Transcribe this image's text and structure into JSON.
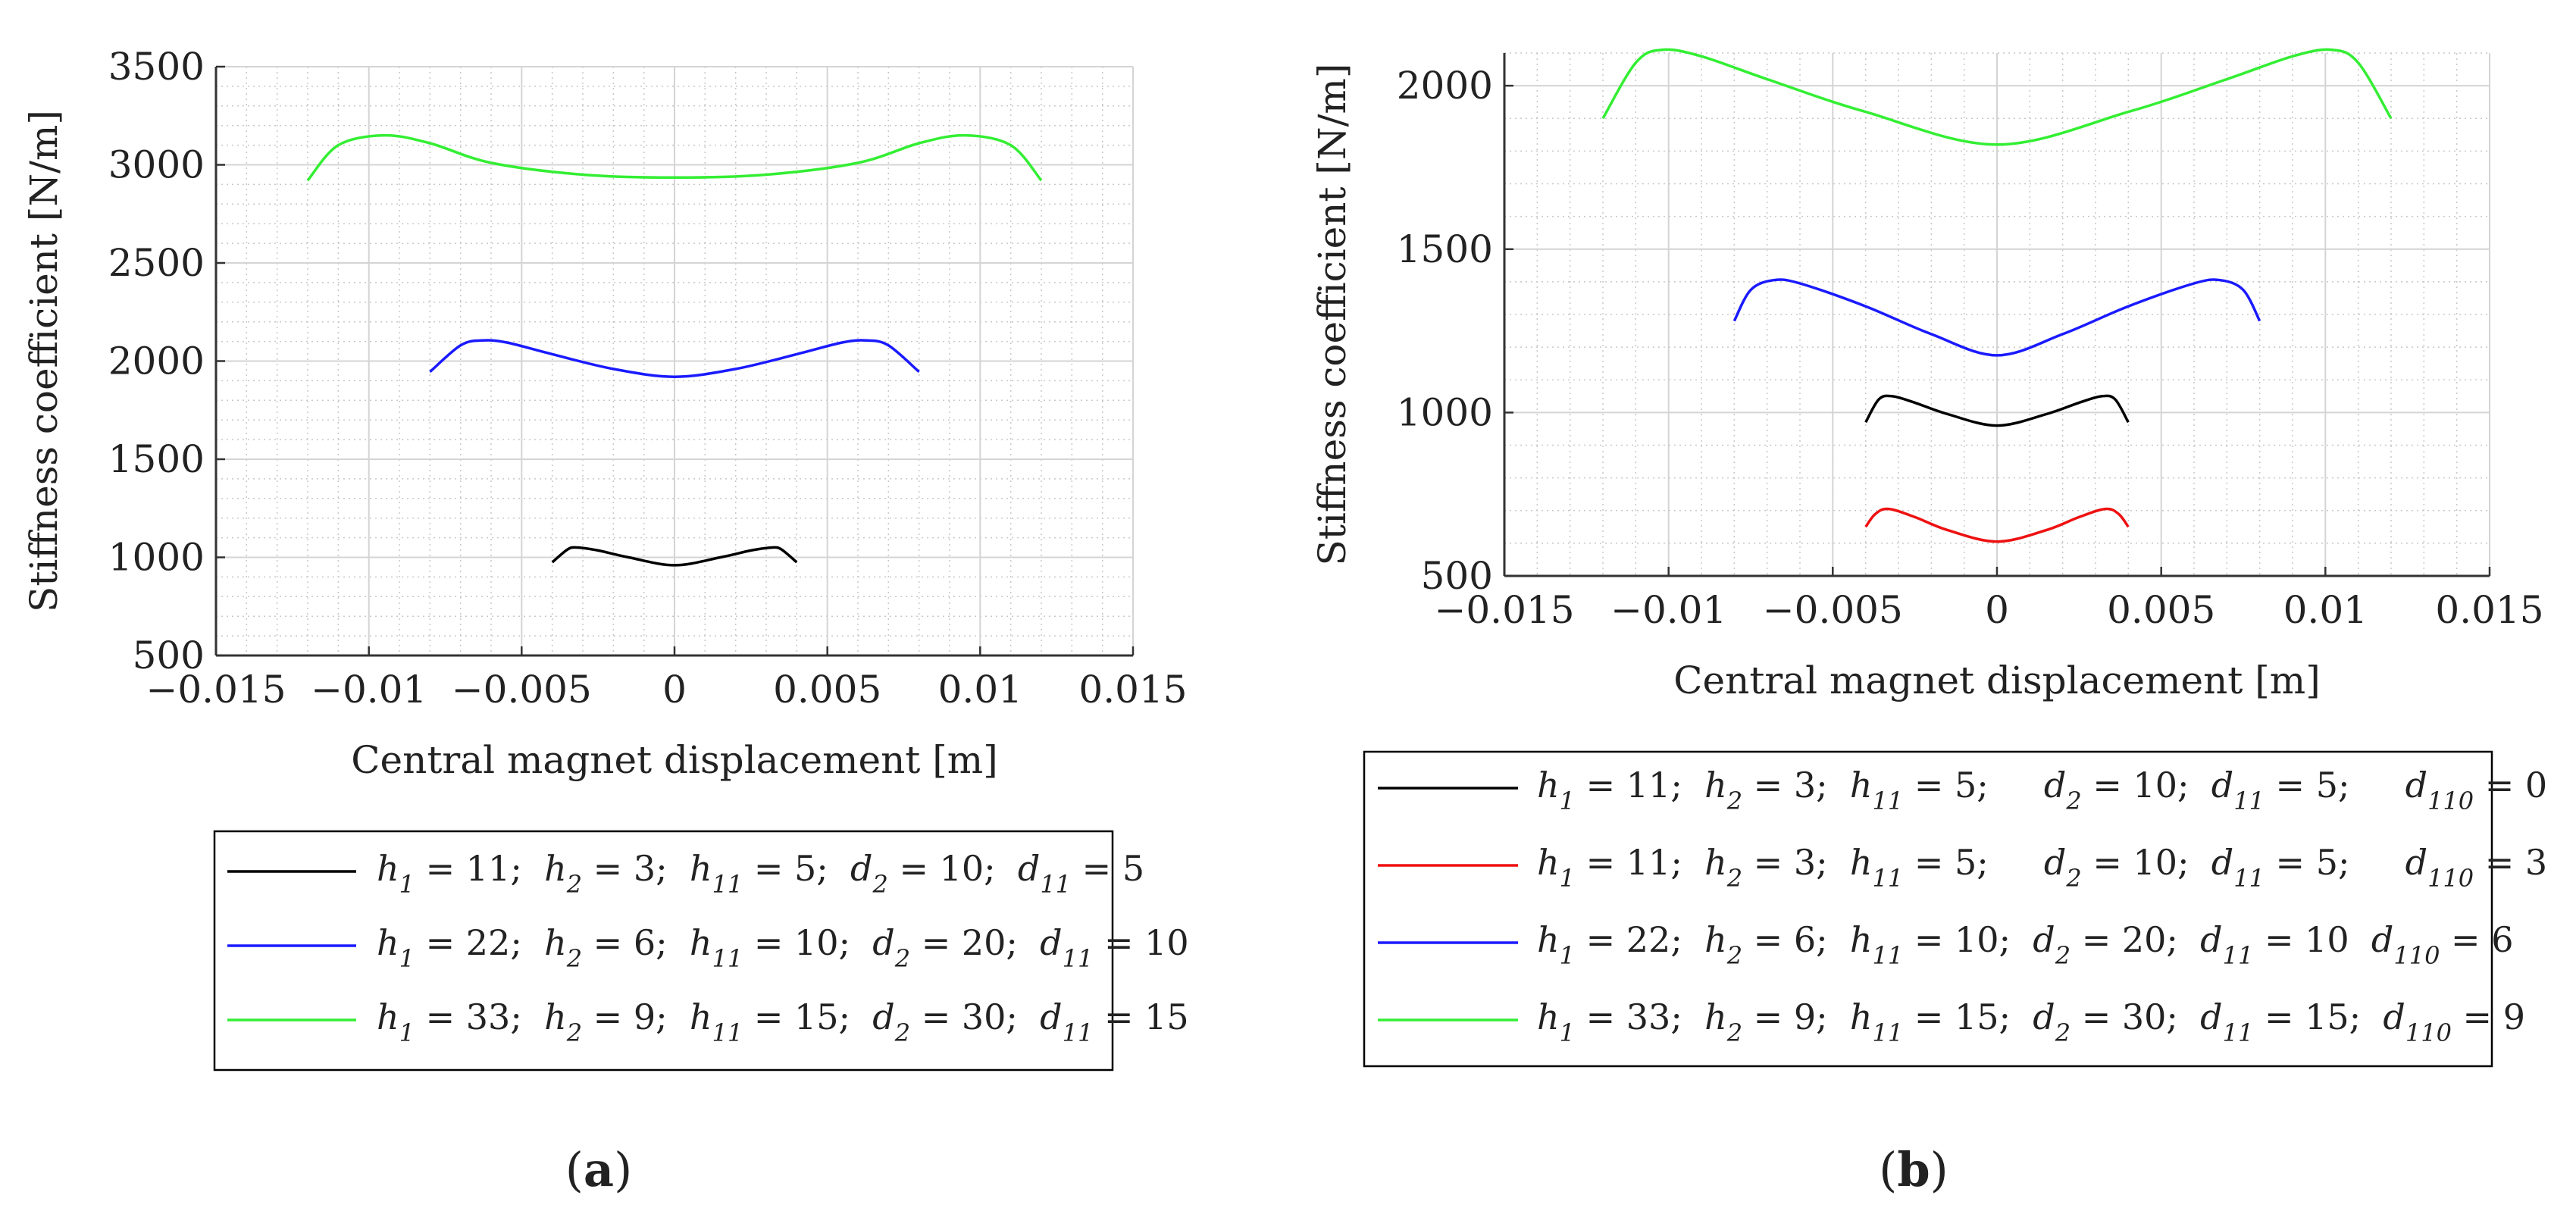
{
  "chart_data": [
    {
      "panel_label": "a",
      "type": "line",
      "title": "",
      "xlabel": "Central magnet displacement [m]",
      "ylabel": "Stiffness coefficient [N/m]",
      "xlim": [
        -0.015,
        0.015
      ],
      "ylim": [
        500,
        3500
      ],
      "xticks": [
        -0.015,
        -0.01,
        -0.005,
        0,
        0.005,
        0.01,
        0.015
      ],
      "xtick_labels": [
        "−0.015",
        "−0.01",
        "−0.005",
        "0",
        "0.005",
        "0.01",
        "0.015"
      ],
      "yticks": [
        500,
        1000,
        1500,
        2000,
        2500,
        3000,
        3500
      ],
      "ytick_labels": [
        "500",
        "1000",
        "1500",
        "2000",
        "2500",
        "3000",
        "3500"
      ],
      "grid": true,
      "legend_position": "below",
      "series": [
        {
          "name": "h1 = 11; h2 = 3; h11 = 5; d2 = 10; d11 = 5",
          "color": "#000000",
          "legend": [
            {
              "v": "h",
              "s": "1",
              "t": " = 11;  "
            },
            {
              "v": "h",
              "s": "2",
              "t": " = 3;  "
            },
            {
              "v": "h",
              "s": "11",
              "t": " = 5;  "
            },
            {
              "v": "d",
              "s": "2",
              "t": " = 10;  "
            },
            {
              "v": "d",
              "s": "11",
              "t": " = 5"
            }
          ],
          "x": [
            -0.004,
            -0.0035,
            -0.0032,
            -0.0025,
            -0.0015,
            0,
            0.0015,
            0.0025,
            0.0032,
            0.0035,
            0.004
          ],
          "y": [
            975,
            1040,
            1050,
            1035,
            1000,
            960,
            1000,
            1035,
            1050,
            1040,
            975
          ]
        },
        {
          "name": "h1 = 22; h2 = 6; h11 = 10; d2 = 20; d11 = 10",
          "color": "#1a1aff",
          "legend": [
            {
              "v": "h",
              "s": "1",
              "t": " = 22;  "
            },
            {
              "v": "h",
              "s": "2",
              "t": " = 6;  "
            },
            {
              "v": "h",
              "s": "11",
              "t": " = 10;  "
            },
            {
              "v": "d",
              "s": "2",
              "t": " = 20;  "
            },
            {
              "v": "d",
              "s": "11",
              "t": " = 10"
            }
          ],
          "x": [
            -0.008,
            -0.007,
            -0.0063,
            -0.0055,
            -0.004,
            -0.002,
            0,
            0.002,
            0.004,
            0.0055,
            0.0063,
            0.007,
            0.008
          ],
          "y": [
            1945,
            2080,
            2105,
            2095,
            2035,
            1960,
            1920,
            1960,
            2035,
            2095,
            2105,
            2080,
            1945
          ]
        },
        {
          "name": "h1 = 33; h2 = 9; h11 = 15; d2 = 30; d11 = 15",
          "color": "#33ee33",
          "legend": [
            {
              "v": "h",
              "s": "1",
              "t": " = 33;  "
            },
            {
              "v": "h",
              "s": "2",
              "t": " = 9;  "
            },
            {
              "v": "h",
              "s": "11",
              "t": " = 15;  "
            },
            {
              "v": "d",
              "s": "2",
              "t": " = 30;  "
            },
            {
              "v": "d",
              "s": "11",
              "t": " = 15"
            }
          ],
          "x": [
            -0.012,
            -0.011,
            -0.0095,
            -0.008,
            -0.006,
            -0.003,
            0,
            0.003,
            0.006,
            0.008,
            0.0095,
            0.011,
            0.012
          ],
          "y": [
            2920,
            3100,
            3150,
            3110,
            3010,
            2950,
            2935,
            2950,
            3010,
            3110,
            3150,
            3100,
            2920
          ]
        }
      ]
    },
    {
      "panel_label": "b",
      "type": "line",
      "title": "",
      "xlabel": "Central magnet displacement [m]",
      "ylabel": "Stiffness coefficient [N/m]",
      "xlim": [
        -0.015,
        0.015
      ],
      "ylim": [
        500,
        2100
      ],
      "xticks": [
        -0.015,
        -0.01,
        -0.005,
        0,
        0.005,
        0.01,
        0.015
      ],
      "xtick_labels": [
        "−0.015",
        "−0.01",
        "−0.005",
        "0",
        "0.005",
        "0.01",
        "0.015"
      ],
      "yticks": [
        500,
        1000,
        1500,
        2000
      ],
      "ytick_labels": [
        "500",
        "1000",
        "1500",
        "2000"
      ],
      "grid": true,
      "legend_position": "below",
      "series": [
        {
          "name": "h1 = 11; h2 = 3; h11 = 5; d2 = 10; d11 = 5; d110 = 0",
          "color": "#000000",
          "legend": [
            {
              "v": "h",
              "s": "1",
              "t": " = 11;  "
            },
            {
              "v": "h",
              "s": "2",
              "t": " = 3;  "
            },
            {
              "v": "h",
              "s": "11",
              "t": " = 5;     "
            },
            {
              "v": "d",
              "s": "2",
              "t": " = 10;  "
            },
            {
              "v": "d",
              "s": "11",
              "t": " = 5;     "
            },
            {
              "v": "d",
              "s": "110",
              "t": " = 0"
            }
          ],
          "x": [
            -0.004,
            -0.0036,
            -0.0032,
            -0.0025,
            -0.0015,
            0,
            0.0015,
            0.0025,
            0.0032,
            0.0036,
            0.004
          ],
          "y": [
            970,
            1040,
            1050,
            1030,
            995,
            960,
            995,
            1030,
            1050,
            1040,
            970
          ]
        },
        {
          "name": "h1 = 11; h2 = 3; h11 = 5; d2 = 10; d11 = 5; d110 = 3",
          "color": "#ee1111",
          "legend": [
            {
              "v": "h",
              "s": "1",
              "t": " = 11;  "
            },
            {
              "v": "h",
              "s": "2",
              "t": " = 3;  "
            },
            {
              "v": "h",
              "s": "11",
              "t": " = 5;     "
            },
            {
              "v": "d",
              "s": "2",
              "t": " = 10;  "
            },
            {
              "v": "d",
              "s": "11",
              "t": " = 5;     "
            },
            {
              "v": "d",
              "s": "110",
              "t": " = 3"
            }
          ],
          "x": [
            -0.004,
            -0.0037,
            -0.0033,
            -0.0025,
            -0.0015,
            0,
            0.0015,
            0.0025,
            0.0033,
            0.0037,
            0.004
          ],
          "y": [
            650,
            690,
            705,
            680,
            640,
            605,
            640,
            680,
            705,
            690,
            650
          ]
        },
        {
          "name": "h1 = 22; h2 = 6; h11 = 10; d2 = 20; d11 = 10 d110 = 6",
          "color": "#1a1aff",
          "legend": [
            {
              "v": "h",
              "s": "1",
              "t": " = 22;  "
            },
            {
              "v": "h",
              "s": "2",
              "t": " = 6;  "
            },
            {
              "v": "h",
              "s": "11",
              "t": " = 10;  "
            },
            {
              "v": "d",
              "s": "2",
              "t": " = 20;  "
            },
            {
              "v": "d",
              "s": "11",
              "t": " = 10  "
            },
            {
              "v": "d",
              "s": "110",
              "t": " = 6"
            }
          ],
          "x": [
            -0.008,
            -0.0075,
            -0.0068,
            -0.006,
            -0.004,
            -0.002,
            0,
            0.002,
            0.004,
            0.006,
            0.0068,
            0.0075,
            0.008
          ],
          "y": [
            1280,
            1375,
            1405,
            1395,
            1325,
            1240,
            1175,
            1240,
            1325,
            1395,
            1405,
            1375,
            1280
          ]
        },
        {
          "name": "h1 = 33; h2 = 9; h11 = 15; d2 = 30; d11 = 15; d110 = 9",
          "color": "#33ee33",
          "legend": [
            {
              "v": "h",
              "s": "1",
              "t": " = 33;  "
            },
            {
              "v": "h",
              "s": "2",
              "t": " = 9;  "
            },
            {
              "v": "h",
              "s": "11",
              "t": " = 15;  "
            },
            {
              "v": "d",
              "s": "2",
              "t": " = 30;  "
            },
            {
              "v": "d",
              "s": "11",
              "t": " = 15;  "
            },
            {
              "v": "d",
              "s": "110",
              "t": " = 9"
            }
          ],
          "x": [
            -0.012,
            -0.011,
            -0.0102,
            -0.009,
            -0.007,
            -0.004,
            0,
            0.004,
            0.007,
            0.009,
            0.0102,
            0.011,
            0.012
          ],
          "y": [
            1900,
            2070,
            2110,
            2090,
            2020,
            1920,
            1820,
            1920,
            2020,
            2090,
            2110,
            2070,
            1900
          ]
        }
      ]
    }
  ]
}
